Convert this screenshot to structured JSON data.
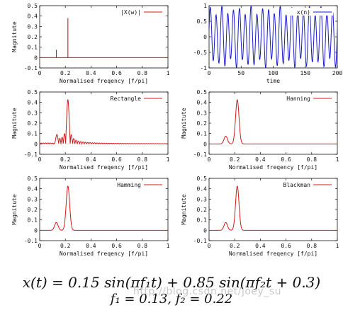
{
  "caption": {
    "line1": "x(t) = 0.15 sin(πf₁t) + 0.85 sin(πf₂t + 0.3)",
    "line2": "f₁ = 0.13,  f₂ = 0.22"
  },
  "watermark": "http://blog.csdn.net/joey_su",
  "colors": {
    "red": "#d11a1a",
    "blue": "#1a1acb",
    "axis": "#111111"
  },
  "chart_data": [
    {
      "id": "p1",
      "type": "line",
      "legend": "|X(w)|",
      "xlabel": "Normalised freqency [f/pi]",
      "ylabel": "Magnitute",
      "xlim": [
        0,
        1
      ],
      "ylim": [
        -0.1,
        0.5
      ],
      "xticks": [
        "0",
        "0.2",
        "0.4",
        "0.6",
        "0.8",
        "1"
      ],
      "yticks": [
        "-0.1",
        "0",
        "0.1",
        "0.2",
        "0.3",
        "0.4",
        "0.5"
      ],
      "series": [
        {
          "legend": "|X(w)|",
          "spikes": [
            [
              0.13,
              0.075
            ],
            [
              0.22,
              0.38
            ]
          ],
          "baseline": 0
        }
      ]
    },
    {
      "id": "p2",
      "type": "line",
      "legend": "x(n)",
      "xlabel": "time",
      "ylabel": "",
      "xlim": [
        0,
        200
      ],
      "ylim": [
        -1,
        1
      ],
      "xticks": [
        "0",
        "50",
        "100",
        "150",
        "200"
      ],
      "yticks": [
        "-1",
        "-0.5",
        "0",
        "0.5",
        "1"
      ],
      "series": [
        {
          "legend": "x(n)",
          "amplitudes": [
            0.15,
            0.85
          ],
          "frequencies": [
            0.13,
            0.22
          ],
          "phases": [
            0,
            0.3
          ]
        }
      ]
    },
    {
      "id": "p3",
      "type": "line",
      "legend": "Rectangle",
      "xlabel": "Normalised freqency [f/pi]",
      "ylabel": "Magnitute",
      "xlim": [
        0,
        1
      ],
      "ylim": [
        -0.1,
        0.5
      ],
      "xticks": [
        "0",
        "0.2",
        "0.4",
        "0.6",
        "0.8",
        "1"
      ],
      "yticks": [
        "-0.1",
        "0",
        "0.1",
        "0.2",
        "0.3",
        "0.4",
        "0.5"
      ],
      "series": [
        {
          "legend": "Rectangle",
          "window": "rectangle",
          "peaks": [
            [
              0.13,
              0.075
            ],
            [
              0.22,
              0.425
            ]
          ]
        }
      ]
    },
    {
      "id": "p4",
      "type": "line",
      "legend": "Hanning",
      "xlabel": "Normalised freqency [f/pi]",
      "ylabel": "Magnitute",
      "xlim": [
        0,
        1
      ],
      "ylim": [
        -0.1,
        0.5
      ],
      "xticks": [
        "0",
        "0.2",
        "0.4",
        "0.6",
        "0.8",
        "1"
      ],
      "yticks": [
        "-0.1",
        "0",
        "0.1",
        "0.2",
        "0.3",
        "0.4",
        "0.5"
      ],
      "series": [
        {
          "legend": "Hanning",
          "window": "smooth",
          "peaks": [
            [
              0.13,
              0.075
            ],
            [
              0.22,
              0.425
            ]
          ]
        }
      ]
    },
    {
      "id": "p5",
      "type": "line",
      "legend": "Hamming",
      "xlabel": "Normalised freqency [f/pi]",
      "ylabel": "Magnitute",
      "xlim": [
        0,
        1
      ],
      "ylim": [
        -0.1,
        0.5
      ],
      "xticks": [
        "0",
        "0.2",
        "0.4",
        "0.6",
        "0.8",
        "1"
      ],
      "yticks": [
        "-0.1",
        "0",
        "0.1",
        "0.2",
        "0.3",
        "0.4",
        "0.5"
      ],
      "series": [
        {
          "legend": "Hamming",
          "window": "smooth",
          "peaks": [
            [
              0.13,
              0.075
            ],
            [
              0.22,
              0.425
            ]
          ]
        }
      ]
    },
    {
      "id": "p6",
      "type": "line",
      "legend": "Blackman",
      "xlabel": "Normalised freqency [f/pi]",
      "ylabel": "Magnitute",
      "xlim": [
        0,
        1
      ],
      "ylim": [
        -0.1,
        0.5
      ],
      "xticks": [
        "0",
        "0.2",
        "0.4",
        "0.6",
        "0.8",
        "1"
      ],
      "yticks": [
        "-0.1",
        "0",
        "0.1",
        "0.2",
        "0.3",
        "0.4",
        "0.5"
      ],
      "series": [
        {
          "legend": "Blackman",
          "window": "smooth",
          "peaks": [
            [
              0.13,
              0.075
            ],
            [
              0.22,
              0.425
            ]
          ]
        }
      ]
    }
  ]
}
